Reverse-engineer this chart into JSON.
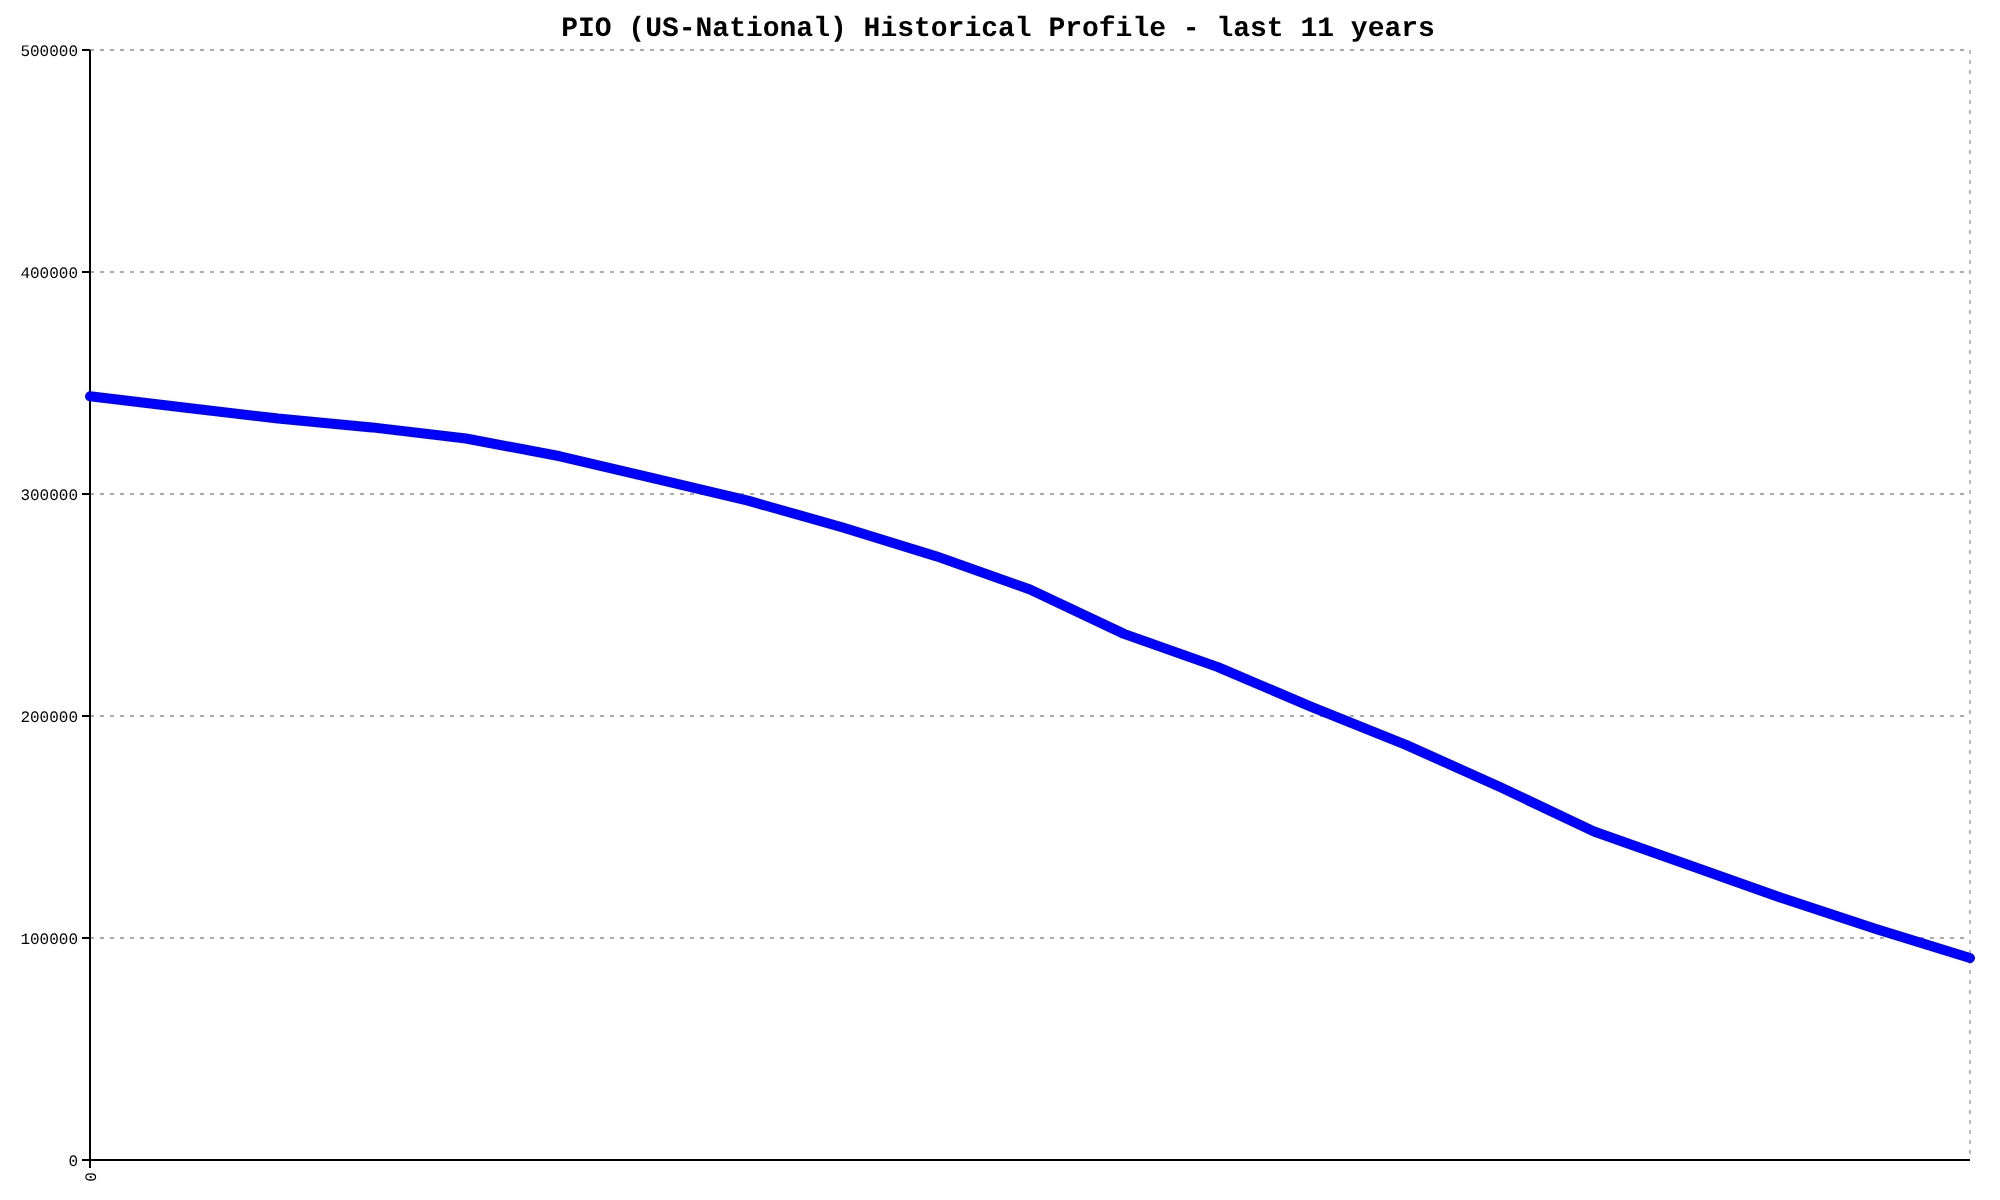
{
  "chart_data": {
    "type": "line",
    "title": "PIO (US-National) Historical Profile - last 11 years",
    "categories": [
      "0",
      null,
      null,
      null,
      null,
      null,
      null,
      null,
      null,
      null,
      null,
      null,
      null,
      null,
      null,
      null,
      null,
      null,
      null,
      null,
      null
    ],
    "series": [
      {
        "color": "#0000ff",
        "values": [
          344000,
          339000,
          334000,
          330000,
          325000,
          317000,
          307000,
          297000,
          285000,
          272000,
          257000,
          237000,
          222000,
          204000,
          187000,
          168000,
          148000,
          133000,
          118000,
          104000,
          91000
        ]
      }
    ],
    "ylim": [
      0,
      500000
    ],
    "yticks": [
      0,
      100000,
      200000,
      300000,
      400000,
      500000
    ],
    "grid": "y",
    "marker": "none",
    "line_style": "solid"
  }
}
